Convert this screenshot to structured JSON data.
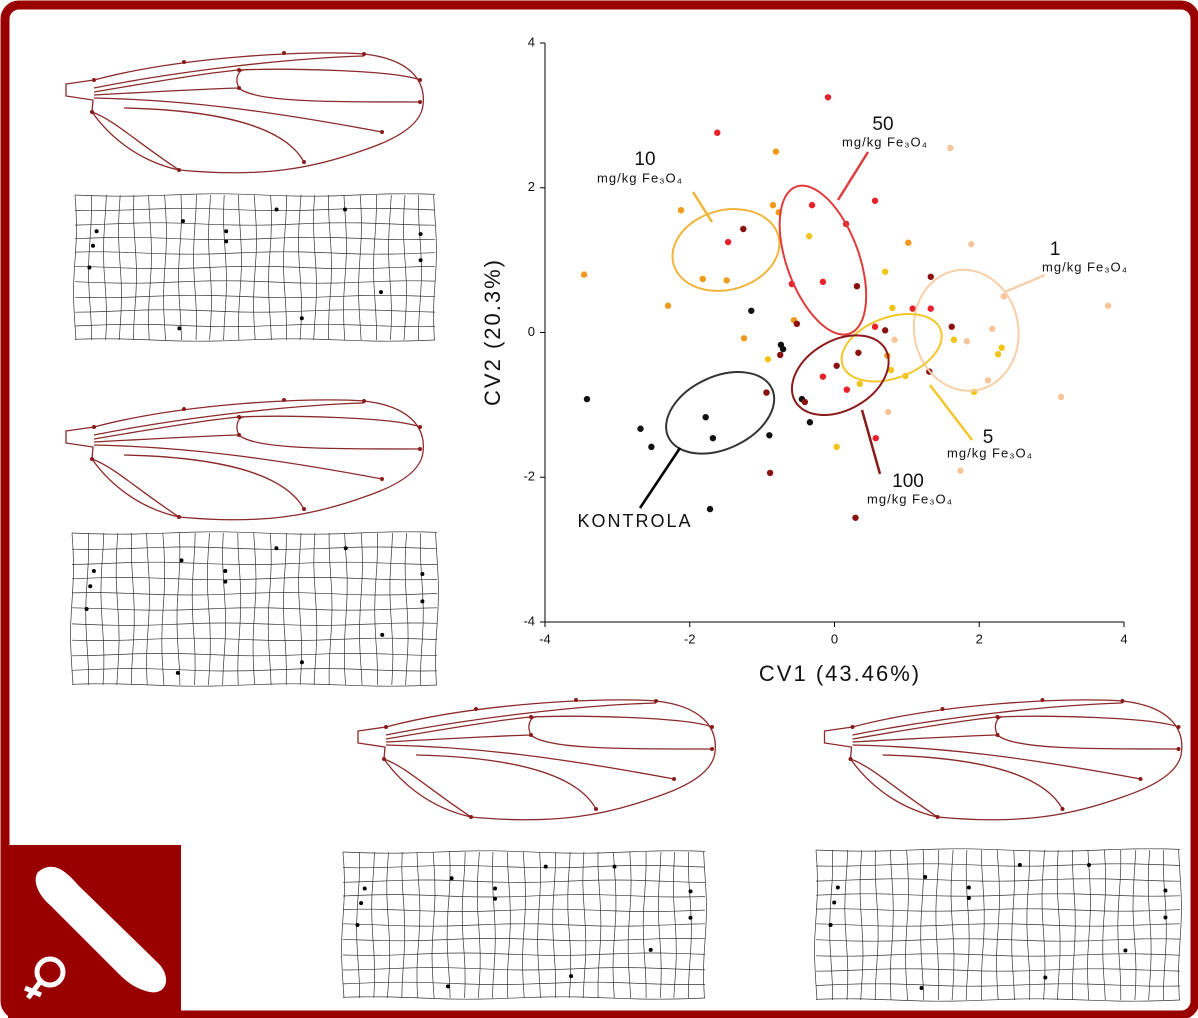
{
  "chart_data": {
    "type": "scatter",
    "xlabel": "CV1 (43.46%)",
    "ylabel": "CV2 (20.3%)",
    "xlim": [
      -4,
      4
    ],
    "ylim": [
      -4,
      4
    ],
    "xticks": [
      -4,
      -2,
      0,
      2,
      4
    ],
    "yticks": [
      -4,
      -2,
      0,
      2,
      4
    ],
    "series": [
      {
        "name": "KONTROLA",
        "color": "#111111",
        "ellipse_color": "#333333",
        "x": [
          -3.42,
          -2.68,
          -2.53,
          -1.78,
          -1.68,
          -1.72,
          -0.9,
          -1.15,
          -0.74,
          -0.71,
          -0.45,
          -0.34
        ],
        "values": [
          -0.92,
          -1.33,
          -1.58,
          -1.17,
          -1.46,
          -2.44,
          -1.42,
          0.3,
          -0.17,
          -0.23,
          -0.92,
          -1.24
        ],
        "ellipse": {
          "cx": -1.58,
          "cy": -1.11,
          "rx": 0.79,
          "ry": 0.5,
          "angle": 25
        }
      },
      {
        "name": "1",
        "unit": "mg/kg Fe₃O₄",
        "color": "#f7c49b",
        "ellipse_color": "#f8cfa8",
        "x": [
          1.6,
          1.89,
          3.78,
          3.13,
          2.18,
          1.83,
          1.74,
          0.74,
          2.34,
          0.83,
          2.12
        ],
        "values": [
          2.55,
          1.22,
          0.37,
          -0.89,
          0.05,
          -0.12,
          -1.91,
          -1.1,
          0.5,
          -0.1,
          -0.66
        ],
        "ellipse": {
          "cx": 1.82,
          "cy": 0.03,
          "rx": 0.72,
          "ry": 0.84,
          "angle": 10
        }
      },
      {
        "name": "5",
        "unit": "mg/kg Fe₃O₄",
        "color": "#f2c418",
        "ellipse_color": "#f3c62a",
        "x": [
          -0.35,
          0.7,
          0.8,
          0.35,
          0.78,
          0.98,
          1.65,
          2.26,
          2.31,
          1.93,
          0.03,
          -0.92
        ],
        "values": [
          1.33,
          0.84,
          0.34,
          -0.71,
          -0.52,
          -0.6,
          -0.1,
          -0.3,
          -0.21,
          -0.82,
          -1.58,
          -0.37
        ],
        "ellipse": {
          "cx": 0.79,
          "cy": -0.21,
          "rx": 0.72,
          "ry": 0.42,
          "angle": 20
        }
      },
      {
        "name": "10",
        "unit": "mg/kg Fe₃O₄",
        "color": "#ef9a1a",
        "ellipse_color": "#efb53a",
        "x": [
          -3.46,
          -2.3,
          -2.12,
          -1.82,
          -1.49,
          -0.81,
          -0.85,
          -0.77,
          -1.25,
          1.02,
          0.73,
          -0.56
        ],
        "values": [
          0.8,
          0.37,
          1.69,
          0.74,
          0.72,
          2.5,
          1.76,
          1.66,
          -0.08,
          1.24,
          -0.32,
          0.17
        ],
        "ellipse": {
          "cx": -1.5,
          "cy": 1.14,
          "rx": 0.75,
          "ry": 0.55,
          "angle": 15
        }
      },
      {
        "name": "50",
        "unit": "mg/kg Fe₃O₄",
        "color": "#e8202a",
        "ellipse_color": "#e03c3c",
        "x": [
          -1.62,
          -0.09,
          -1.47,
          -0.31,
          0.16,
          0.56,
          -0.59,
          -0.16,
          0.56,
          1.08,
          1.33,
          -0.16,
          0.17,
          0.57
        ],
        "values": [
          2.76,
          3.25,
          1.25,
          1.76,
          1.5,
          1.82,
          0.67,
          0.7,
          0.08,
          0.33,
          0.33,
          -0.61,
          -0.79,
          -1.46
        ],
        "ellipse": {
          "cx": -0.16,
          "cy": 1.0,
          "rx": 1.08,
          "ry": 0.5,
          "angle": 110
        }
      },
      {
        "name": "100",
        "unit": "mg/kg Fe₃O₄",
        "color": "#8b1010",
        "ellipse_color": "#8b1a1a",
        "x": [
          -1.26,
          -0.75,
          -0.52,
          0.03,
          0.31,
          1.33,
          1.62,
          1.31,
          -0.41,
          0.33,
          0.29,
          -0.89,
          -0.94,
          0.7
        ],
        "values": [
          1.43,
          -0.31,
          0.12,
          -0.46,
          0.64,
          0.77,
          0.08,
          -0.54,
          -0.96,
          -0.28,
          -2.56,
          -1.94,
          -0.83,
          0.03
        ],
        "ellipse": {
          "cx": 0.08,
          "cy": -0.59,
          "rx": 0.72,
          "ry": 0.48,
          "angle": 30
        }
      }
    ]
  }
}
